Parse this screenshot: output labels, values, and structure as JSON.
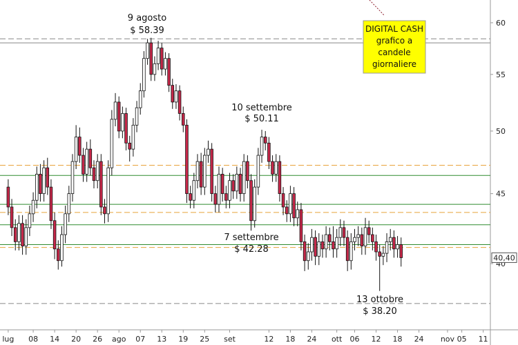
{
  "chart_data": {
    "type": "candlestick",
    "log_scale": true,
    "up_color": "#ffffff",
    "down_color": "#c8284a",
    "wick_color": "#111111",
    "xlim": [
      -2.3,
      135
    ],
    "ylim": [
      36.75,
      62.34
    ],
    "yticks": [
      40,
      45,
      50,
      55,
      60
    ],
    "xticks": [
      {
        "value": 0,
        "label": "lug"
      },
      {
        "value": 7,
        "label": "08"
      },
      {
        "value": 13,
        "label": "14"
      },
      {
        "value": 19,
        "label": "20"
      },
      {
        "value": 25,
        "label": "26"
      },
      {
        "value": 31,
        "label": "ago"
      },
      {
        "value": 37,
        "label": "07"
      },
      {
        "value": 43,
        "label": "13"
      },
      {
        "value": 49,
        "label": "19"
      },
      {
        "value": 55,
        "label": "25"
      },
      {
        "value": 62,
        "label": "set"
      },
      {
        "value": 73,
        "label": "12"
      },
      {
        "value": 79,
        "label": "18"
      },
      {
        "value": 85,
        "label": "24"
      },
      {
        "value": 92,
        "label": "ott"
      },
      {
        "value": 97,
        "label": "06"
      },
      {
        "value": 103,
        "label": "12"
      },
      {
        "value": 109,
        "label": "18"
      },
      {
        "value": 115,
        "label": "24"
      },
      {
        "value": 123,
        "label": "nov"
      },
      {
        "value": 127,
        "label": "05"
      },
      {
        "value": 133,
        "label": "11"
      }
    ],
    "open": [
      45.5,
      44.0,
      42.5,
      41.5,
      42.8,
      41.2,
      42.5,
      43.5,
      44.5,
      46.5,
      45.0,
      47.0,
      45.5,
      43.0,
      41.0,
      40.2,
      42.0,
      43.5,
      45.0,
      47.5,
      49.5,
      48.0,
      46.5,
      48.5,
      47.0,
      46.0,
      47.5,
      44.0,
      43.5,
      47.0,
      51.0,
      52.5,
      50.0,
      51.5,
      49.0,
      48.5,
      50.5,
      52.0,
      53.5,
      56.5,
      58.0,
      55.0,
      56.0,
      57.5,
      55.5,
      56.5,
      54.0,
      52.5,
      53.5,
      51.5,
      50.5,
      45.0,
      44.5,
      46.0,
      47.5,
      45.5,
      48.0,
      48.5,
      45.0,
      44.2,
      46.5,
      45.0,
      44.5,
      46.0,
      45.2,
      46.5,
      45.0,
      47.5,
      46.0,
      43.0,
      45.5,
      48.0,
      49.5,
      49.0,
      47.5,
      46.5,
      47.5,
      45.0,
      44.0,
      43.5,
      45.0,
      43.2,
      43.8,
      41.5,
      40.2,
      40.8,
      41.8,
      40.5,
      41.5,
      41.0,
      42.0,
      41.5,
      41.0,
      41.8,
      42.5,
      41.8,
      40.2,
      41.5,
      41.8,
      42.0,
      41.2,
      42.5,
      42.0,
      41.5,
      40.8,
      40.5,
      40.7,
      41.5,
      41.8,
      41.0,
      41.3
    ],
    "high": [
      46.1,
      44.6,
      43.1,
      43.4,
      43.4,
      43.1,
      44.1,
      45.1,
      47.1,
      47.3,
      47.6,
      47.8,
      46.1,
      43.6,
      41.6,
      42.6,
      44.1,
      45.6,
      48.1,
      50.5,
      50.3,
      48.6,
      49.1,
      49.3,
      47.6,
      48.1,
      48.1,
      44.6,
      47.6,
      51.8,
      53.3,
      53.0,
      52.1,
      52.0,
      49.6,
      51.1,
      52.6,
      54.2,
      57.2,
      58.39,
      58.5,
      56.7,
      58.2,
      58.0,
      57.1,
      57.0,
      54.6,
      54.1,
      54.0,
      52.1,
      51.0,
      45.6,
      46.6,
      48.1,
      48.2,
      48.6,
      49.2,
      49.0,
      45.6,
      47.1,
      47.0,
      45.6,
      46.6,
      46.5,
      47.1,
      47.0,
      48.1,
      48.0,
      46.5,
      46.1,
      48.6,
      50.11,
      50.0,
      49.5,
      48.0,
      48.1,
      48.0,
      45.5,
      44.5,
      45.6,
      45.5,
      44.4,
      44.3,
      42.0,
      41.4,
      42.4,
      42.3,
      42.1,
      42.0,
      42.6,
      42.5,
      42.6,
      42.4,
      43.1,
      43.0,
      42.3,
      42.1,
      42.4,
      42.6,
      42.5,
      43.2,
      43.0,
      42.5,
      42.0,
      41.3,
      41.2,
      42.1,
      42.4,
      42.3,
      41.9,
      41.8
    ],
    "low": [
      43.4,
      41.9,
      40.9,
      40.9,
      40.6,
      40.6,
      41.9,
      42.9,
      43.9,
      44.4,
      44.4,
      44.9,
      42.4,
      40.3,
      39.6,
      39.8,
      41.4,
      42.9,
      44.4,
      46.9,
      47.4,
      45.9,
      45.9,
      46.4,
      45.4,
      45.4,
      43.4,
      42.8,
      42.9,
      46.4,
      50.4,
      49.4,
      49.4,
      48.4,
      47.5,
      47.9,
      49.9,
      51.4,
      52.9,
      55.9,
      54.4,
      54.4,
      55.4,
      54.9,
      54.9,
      53.4,
      51.9,
      51.9,
      50.9,
      49.9,
      44.3,
      43.9,
      43.9,
      45.4,
      44.9,
      44.9,
      47.4,
      44.4,
      43.6,
      43.6,
      44.4,
      43.9,
      43.9,
      44.6,
      44.6,
      44.4,
      44.4,
      45.4,
      42.28,
      42.5,
      44.9,
      47.4,
      48.4,
      46.9,
      45.9,
      45.9,
      44.4,
      43.4,
      42.9,
      42.9,
      42.6,
      42.6,
      40.9,
      39.5,
      39.6,
      40.2,
      39.9,
      39.9,
      40.4,
      40.4,
      40.9,
      40.4,
      40.4,
      41.2,
      41.2,
      39.5,
      39.6,
      40.9,
      41.2,
      40.6,
      40.6,
      41.4,
      40.9,
      40.2,
      38.2,
      39.9,
      40.1,
      40.9,
      40.4,
      40.4,
      39.8
    ],
    "close": [
      44.0,
      42.5,
      41.5,
      42.8,
      41.2,
      42.5,
      43.5,
      44.5,
      46.5,
      45.0,
      47.0,
      45.5,
      43.0,
      41.0,
      40.2,
      42.0,
      43.5,
      45.0,
      47.5,
      49.5,
      48.0,
      46.5,
      48.5,
      47.0,
      46.0,
      47.5,
      44.0,
      43.5,
      47.0,
      51.0,
      52.5,
      50.0,
      51.5,
      49.0,
      48.5,
      50.5,
      52.0,
      53.5,
      56.5,
      58.0,
      55.0,
      56.0,
      57.5,
      55.5,
      56.5,
      54.0,
      52.5,
      53.5,
      51.5,
      50.5,
      45.0,
      44.5,
      46.0,
      47.5,
      45.5,
      48.0,
      48.5,
      45.0,
      44.2,
      46.5,
      45.0,
      44.5,
      46.0,
      45.2,
      46.5,
      45.0,
      47.5,
      46.0,
      43.0,
      45.5,
      48.0,
      49.5,
      49.0,
      47.5,
      46.5,
      47.5,
      45.0,
      44.0,
      43.5,
      45.0,
      43.2,
      43.8,
      41.5,
      40.2,
      40.8,
      41.8,
      40.5,
      41.5,
      41.0,
      42.0,
      41.5,
      41.0,
      41.8,
      42.5,
      41.8,
      40.2,
      41.5,
      41.8,
      42.0,
      41.2,
      42.5,
      42.0,
      41.5,
      40.8,
      40.5,
      40.7,
      41.5,
      41.8,
      41.0,
      41.3,
      40.4
    ],
    "levels": [
      {
        "value": 58.0,
        "color": "#888888",
        "style": "solid"
      },
      {
        "value": 58.4,
        "color": "#888888",
        "style": "dashed"
      },
      {
        "value": 47.2,
        "color": "#e8a33a",
        "style": "dashed"
      },
      {
        "value": 46.4,
        "color": "#2e8b2e",
        "style": "solid"
      },
      {
        "value": 44.2,
        "color": "#2e8b2e",
        "style": "solid"
      },
      {
        "value": 43.6,
        "color": "#e8a33a",
        "style": "dashed"
      },
      {
        "value": 42.7,
        "color": "#2e8b2e",
        "style": "solid"
      },
      {
        "value": 41.3,
        "color": "#2e8b2e",
        "style": "solid"
      },
      {
        "value": 41.1,
        "color": "#e8a33a",
        "style": "dashed"
      },
      {
        "value": 37.4,
        "color": "#888888",
        "style": "dashed"
      }
    ],
    "last_price": {
      "value": 40.4,
      "label": "40,40"
    },
    "annotations": [
      [
        "9 agosto",
        "$ 58.39"
      ],
      [
        "10 settembre",
        "$ 50.11"
      ],
      [
        "7 settembre",
        "$ 42.28"
      ],
      [
        "13 ottobre",
        "$ 38.20"
      ]
    ],
    "info_box": [
      "DIGITAL CASH",
      "grafico a",
      "candele",
      "giornaliere"
    ]
  }
}
